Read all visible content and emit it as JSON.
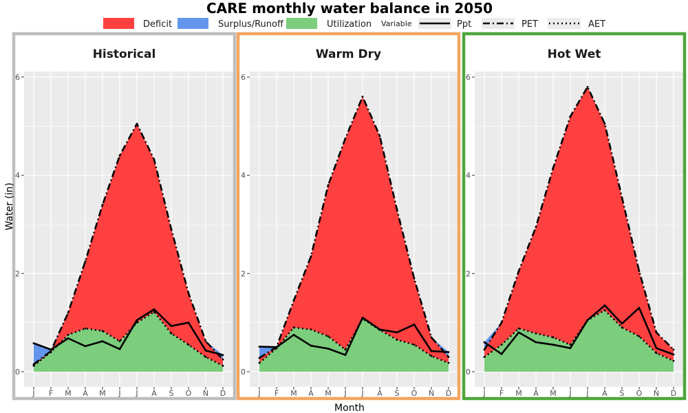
{
  "chart_data": {
    "type": "area",
    "title": "CARE monthly water balance in 2050",
    "xlabel": "Month",
    "ylabel": "Water (in)",
    "ylim": [
      0,
      6
    ],
    "yticks": [
      0,
      2,
      4,
      6
    ],
    "categories": [
      "J",
      "F",
      "M",
      "A",
      "M",
      "J",
      "J",
      "A",
      "S",
      "O",
      "N",
      "D"
    ],
    "legend": {
      "position": "top",
      "fill_entries": [
        {
          "label": "Deficit",
          "color": "#FF4040"
        },
        {
          "label": "Surplus/Runoff",
          "color": "#6495ED"
        },
        {
          "label": "Utilization",
          "color": "#7CCD7C"
        }
      ],
      "line_title": "Variable",
      "line_entries": [
        {
          "label": "Ppt",
          "style": "solid"
        },
        {
          "label": "PET",
          "style": "longdash"
        },
        {
          "label": "AET",
          "style": "dotted"
        }
      ]
    },
    "panels": [
      {
        "name": "Historical",
        "border_color": "#BEBEBE",
        "series": [
          {
            "name": "Ppt",
            "values": [
              0.58,
              0.45,
              0.68,
              0.52,
              0.62,
              0.46,
              1.05,
              1.27,
              0.93,
              1.0,
              0.43,
              0.34
            ]
          },
          {
            "name": "PET",
            "values": [
              0.15,
              0.42,
              1.2,
              2.25,
              3.4,
              4.4,
              5.05,
              4.32,
              2.9,
              1.6,
              0.62,
              0.25
            ]
          },
          {
            "name": "AET",
            "values": [
              0.12,
              0.4,
              0.75,
              0.88,
              0.83,
              0.62,
              1.0,
              1.22,
              0.78,
              0.55,
              0.3,
              0.12
            ]
          }
        ]
      },
      {
        "name": "Warm Dry",
        "border_color": "#F4A460",
        "series": [
          {
            "name": "Ppt",
            "values": [
              0.51,
              0.5,
              0.75,
              0.53,
              0.47,
              0.34,
              1.1,
              0.86,
              0.8,
              0.96,
              0.42,
              0.4
            ]
          },
          {
            "name": "PET",
            "values": [
              0.28,
              0.5,
              1.45,
              2.35,
              3.8,
              4.75,
              5.6,
              4.8,
              3.3,
              1.9,
              0.7,
              0.3
            ]
          },
          {
            "name": "AET",
            "values": [
              0.18,
              0.48,
              0.9,
              0.86,
              0.72,
              0.45,
              1.08,
              0.85,
              0.65,
              0.55,
              0.32,
              0.18
            ]
          }
        ]
      },
      {
        "name": "Hot Wet",
        "border_color": "#4EA63C",
        "series": [
          {
            "name": "Ppt",
            "values": [
              0.6,
              0.36,
              0.8,
              0.6,
              0.55,
              0.48,
              1.05,
              1.35,
              0.98,
              1.3,
              0.48,
              0.35
            ]
          },
          {
            "name": "PET",
            "values": [
              0.45,
              1.0,
              2.05,
              2.95,
              4.15,
              5.2,
              5.8,
              5.05,
              3.55,
              2.05,
              0.8,
              0.45
            ]
          },
          {
            "name": "AET",
            "values": [
              0.3,
              0.55,
              0.88,
              0.78,
              0.7,
              0.55,
              1.05,
              1.25,
              0.9,
              0.72,
              0.38,
              0.22
            ]
          }
        ]
      }
    ]
  }
}
